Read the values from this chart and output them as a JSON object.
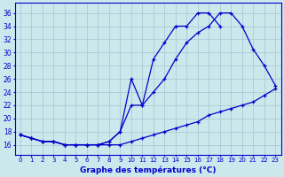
{
  "xlabel": "Graphe des températures (°C)",
  "bg_color": "#cce8ec",
  "grid_color": "#9fc8d0",
  "line_color": "#0000cc",
  "hours": [
    0,
    1,
    2,
    3,
    4,
    5,
    6,
    7,
    8,
    9,
    10,
    11,
    12,
    13,
    14,
    15,
    16,
    17,
    18,
    19,
    20,
    21,
    22,
    23
  ],
  "line_actual": [
    17.5,
    17.0,
    16.5,
    16.5,
    16.0,
    16.0,
    16.0,
    16.0,
    16.5,
    18.0,
    26.0,
    22.0,
    29.0,
    31.5,
    34.0,
    34.0,
    36.0,
    36.0,
    34.0,
    null,
    null,
    null,
    null,
    null
  ],
  "line_max": [
    17.5,
    17.0,
    16.5,
    16.5,
    16.0,
    16.0,
    16.0,
    16.0,
    16.5,
    18.0,
    22.0,
    22.0,
    24.0,
    26.0,
    29.0,
    31.5,
    33.0,
    34.0,
    36.0,
    36.0,
    34.0,
    30.5,
    28.0,
    25.0
  ],
  "line_min": [
    17.5,
    17.0,
    16.5,
    16.5,
    16.0,
    16.0,
    16.0,
    16.0,
    16.0,
    16.0,
    16.5,
    17.0,
    17.5,
    18.0,
    18.5,
    19.0,
    19.5,
    20.5,
    21.0,
    21.5,
    22.0,
    22.5,
    23.5,
    24.5
  ],
  "ylim": [
    14.5,
    37.5
  ],
  "yticks": [
    16,
    18,
    20,
    22,
    24,
    26,
    28,
    30,
    32,
    34,
    36
  ],
  "xticks": [
    0,
    1,
    2,
    3,
    4,
    5,
    6,
    7,
    8,
    9,
    10,
    11,
    12,
    13,
    14,
    15,
    16,
    17,
    18,
    19,
    20,
    21,
    22,
    23
  ],
  "xlim": [
    -0.5,
    23.5
  ],
  "figsize": [
    3.2,
    2.0
  ],
  "dpi": 100
}
